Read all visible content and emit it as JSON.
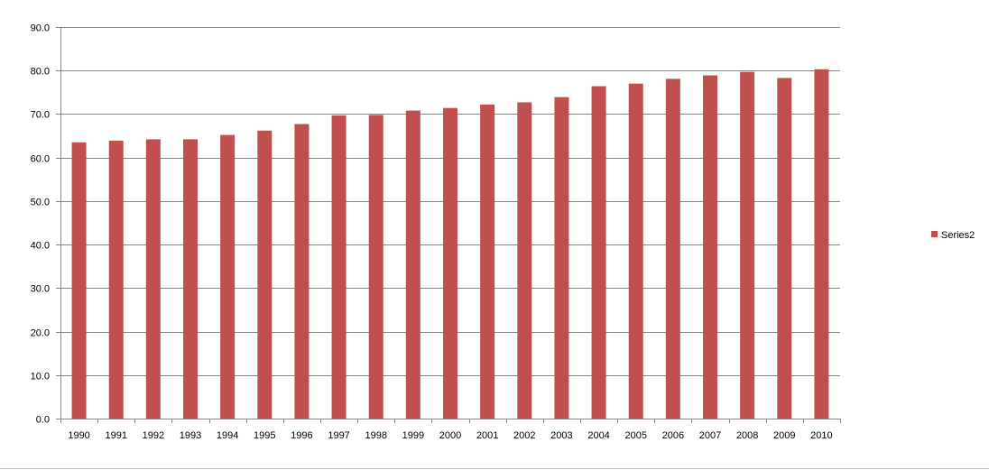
{
  "chart_data": {
    "type": "bar",
    "title": "",
    "xlabel": "",
    "ylabel": "",
    "ylim": [
      0,
      90
    ],
    "ytick_step": 10,
    "ytick_labels": [
      "0.0",
      "10.0",
      "20.0",
      "30.0",
      "40.0",
      "50.0",
      "60.0",
      "70.0",
      "80.0",
      "90.0"
    ],
    "grid": true,
    "legend_position": "right",
    "categories": [
      "1990",
      "1991",
      "1992",
      "1993",
      "1994",
      "1995",
      "1996",
      "1997",
      "1998",
      "1999",
      "2000",
      "2001",
      "2002",
      "2003",
      "2004",
      "2005",
      "2006",
      "2007",
      "2008",
      "2009",
      "2010"
    ],
    "series": [
      {
        "name": "Series2",
        "color": "#c0504d",
        "values": [
          63.5,
          63.9,
          64.2,
          64.2,
          65.2,
          66.2,
          67.7,
          69.7,
          69.8,
          70.8,
          71.4,
          72.2,
          72.7,
          73.9,
          76.4,
          77.0,
          78.1,
          78.9,
          79.7,
          78.3,
          80.3
        ]
      }
    ]
  }
}
